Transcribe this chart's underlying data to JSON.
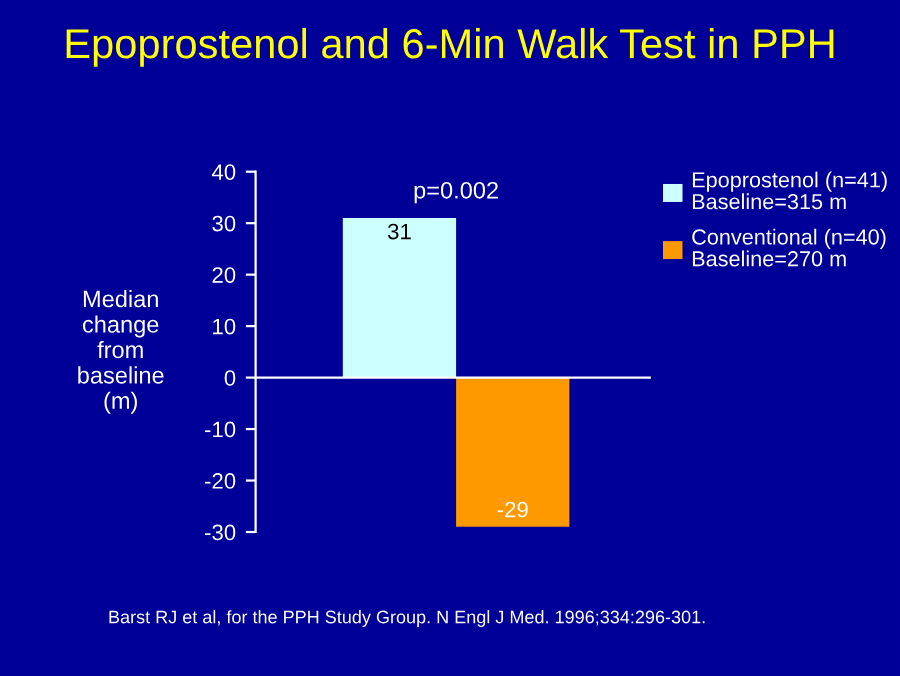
{
  "chart_data": {
    "type": "bar",
    "title": "Epoprostenol and 6-Min Walk Test in PPH",
    "ylabel": "Median\nchange\nfrom\nbaseline\n(m)",
    "categories": [
      null,
      null
    ],
    "series": [
      {
        "name": "Epoprostenol (n=41)\nBaseline=315 m",
        "color": "#ccffff",
        "values": [
          31,
          null
        ]
      },
      {
        "name": "Conventional (n=40)\nBaseline=270 m",
        "color": "#ff9900",
        "values": [
          null,
          -29
        ]
      }
    ],
    "ylim": [
      -30,
      40
    ],
    "yticks": [
      -30,
      -20,
      -10,
      0,
      10,
      20,
      30,
      40
    ],
    "data_labels": true,
    "legend": "top right",
    "tick_labels": "y",
    "annotations": [
      "p=0.002",
      "Barst RJ et al, for the PPH Study Group. N Engl J Med. 1996;334:296-301."
    ]
  }
}
